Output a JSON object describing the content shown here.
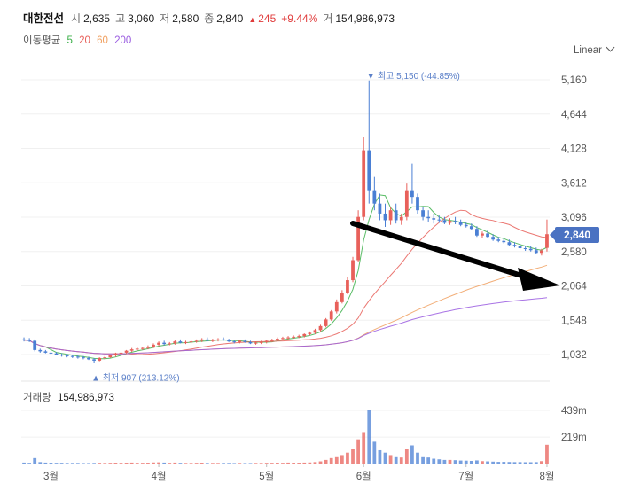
{
  "header": {
    "name": "대한전선",
    "open_label": "시",
    "open": "2,635",
    "high_label": "고",
    "high": "3,060",
    "low_label": "저",
    "low": "2,580",
    "close_label": "종",
    "close": "2,840",
    "change": "245",
    "change_pct": "+9.44%",
    "volume_label": "거",
    "volume": "154,986,973"
  },
  "ma_legend": {
    "title": "이동평균",
    "periods": [
      {
        "label": "5",
        "color": "#3cb04a"
      },
      {
        "label": "20",
        "color": "#e8605a"
      },
      {
        "label": "60",
        "color": "#f0a060"
      },
      {
        "label": "200",
        "color": "#9a5ce0"
      }
    ]
  },
  "scale_label": "Linear",
  "volume_panel": {
    "title": "거래량",
    "value": "154,986,973"
  },
  "colors": {
    "up": "#e8605a",
    "down": "#4a7fd4",
    "accent": "#4a72c2",
    "arrow": "#000000"
  },
  "chart_data": {
    "type": "candlestick",
    "price_ticks": [
      1032,
      1548,
      2064,
      2580,
      3096,
      3612,
      4128,
      4644,
      5160
    ],
    "price_tick_labels": [
      "1,032",
      "1,548",
      "2,064",
      "2,580",
      "3,096",
      "3,612",
      "4,128",
      "4,644",
      "5,160"
    ],
    "ylim": [
      900,
      5300
    ],
    "volume_ticks": [
      "219m",
      "439m"
    ],
    "volume_tick_values": [
      219,
      439
    ],
    "x_labels": [
      "3월",
      "4월",
      "5월",
      "6월",
      "7월",
      "8월"
    ],
    "current_price": "2,840",
    "current_price_value": 2840,
    "high_annotation": "최고 5,150 (-44.85%)",
    "high_annotation_value": 5150,
    "low_annotation": "최저 907 (213.12%)",
    "low_annotation_value": 907,
    "candles": [
      [
        1260,
        1290,
        1230,
        1250,
        8
      ],
      [
        1250,
        1280,
        1220,
        1240,
        6
      ],
      [
        1240,
        1260,
        1080,
        1100,
        45
      ],
      [
        1100,
        1120,
        1060,
        1080,
        12
      ],
      [
        1080,
        1100,
        1050,
        1060,
        8
      ],
      [
        1060,
        1080,
        1030,
        1050,
        7
      ],
      [
        1050,
        1070,
        1020,
        1030,
        6
      ],
      [
        1030,
        1050,
        1000,
        1020,
        6
      ],
      [
        1020,
        1040,
        990,
        1010,
        5
      ],
      [
        1010,
        1030,
        980,
        1000,
        5
      ],
      [
        1000,
        1020,
        970,
        990,
        5
      ],
      [
        990,
        1010,
        960,
        980,
        4
      ],
      [
        980,
        1000,
        950,
        960,
        4
      ],
      [
        960,
        980,
        907,
        940,
        5
      ],
      [
        940,
        990,
        930,
        980,
        6
      ],
      [
        980,
        1010,
        960,
        990,
        5
      ],
      [
        990,
        1030,
        980,
        1020,
        6
      ],
      [
        1020,
        1060,
        1000,
        1050,
        7
      ],
      [
        1050,
        1080,
        1030,
        1060,
        6
      ],
      [
        1060,
        1100,
        1040,
        1090,
        7
      ],
      [
        1090,
        1130,
        1070,
        1110,
        8
      ],
      [
        1110,
        1140,
        1090,
        1120,
        6
      ],
      [
        1120,
        1150,
        1100,
        1130,
        6
      ],
      [
        1130,
        1170,
        1110,
        1150,
        7
      ],
      [
        1150,
        1200,
        1130,
        1180,
        9
      ],
      [
        1180,
        1230,
        1160,
        1210,
        10
      ],
      [
        1210,
        1240,
        1170,
        1190,
        8
      ],
      [
        1190,
        1220,
        1170,
        1200,
        6
      ],
      [
        1200,
        1250,
        1180,
        1230,
        8
      ],
      [
        1230,
        1260,
        1200,
        1210,
        6
      ],
      [
        1210,
        1240,
        1190,
        1220,
        5
      ],
      [
        1220,
        1250,
        1200,
        1230,
        5
      ],
      [
        1230,
        1260,
        1210,
        1240,
        6
      ],
      [
        1240,
        1280,
        1220,
        1260,
        7
      ],
      [
        1260,
        1290,
        1230,
        1240,
        5
      ],
      [
        1240,
        1270,
        1220,
        1250,
        5
      ],
      [
        1250,
        1280,
        1230,
        1260,
        5
      ],
      [
        1260,
        1290,
        1240,
        1250,
        5
      ],
      [
        1250,
        1270,
        1220,
        1230,
        5
      ],
      [
        1230,
        1250,
        1200,
        1220,
        4
      ],
      [
        1220,
        1250,
        1200,
        1240,
        5
      ],
      [
        1240,
        1260,
        1210,
        1220,
        4
      ],
      [
        1220,
        1240,
        1190,
        1200,
        4
      ],
      [
        1200,
        1230,
        1180,
        1210,
        5
      ],
      [
        1210,
        1240,
        1190,
        1220,
        5
      ],
      [
        1220,
        1250,
        1200,
        1240,
        6
      ],
      [
        1240,
        1270,
        1220,
        1250,
        6
      ],
      [
        1250,
        1290,
        1230,
        1270,
        7
      ],
      [
        1270,
        1300,
        1250,
        1280,
        6
      ],
      [
        1280,
        1310,
        1260,
        1290,
        8
      ],
      [
        1290,
        1320,
        1270,
        1300,
        7
      ],
      [
        1300,
        1330,
        1280,
        1310,
        7
      ],
      [
        1310,
        1350,
        1290,
        1340,
        8
      ],
      [
        1340,
        1380,
        1320,
        1360,
        9
      ],
      [
        1360,
        1420,
        1340,
        1400,
        12
      ],
      [
        1400,
        1480,
        1380,
        1460,
        18
      ],
      [
        1460,
        1580,
        1440,
        1560,
        30
      ],
      [
        1560,
        1700,
        1540,
        1680,
        45
      ],
      [
        1680,
        1860,
        1650,
        1820,
        60
      ],
      [
        1820,
        2000,
        1800,
        1960,
        70
      ],
      [
        1960,
        2200,
        1940,
        2150,
        90
      ],
      [
        2150,
        2500,
        2120,
        2450,
        120
      ],
      [
        2450,
        3200,
        2420,
        3100,
        200
      ],
      [
        3100,
        4300,
        3050,
        4100,
        260
      ],
      [
        4100,
        5150,
        3300,
        3500,
        440
      ],
      [
        3500,
        3700,
        3200,
        3300,
        180
      ],
      [
        3300,
        3450,
        3050,
        3150,
        110
      ],
      [
        3150,
        3300,
        2950,
        3050,
        90
      ],
      [
        3050,
        3250,
        2980,
        3200,
        70
      ],
      [
        3200,
        3300,
        3000,
        3050,
        60
      ],
      [
        3050,
        3150,
        2980,
        3100,
        50
      ],
      [
        3100,
        3600,
        3050,
        3500,
        120
      ],
      [
        3500,
        3900,
        3300,
        3400,
        150
      ],
      [
        3400,
        3450,
        3150,
        3200,
        90
      ],
      [
        3200,
        3250,
        3050,
        3100,
        60
      ],
      [
        3100,
        3200,
        3030,
        3080,
        50
      ],
      [
        3080,
        3150,
        3000,
        3060,
        40
      ],
      [
        3060,
        3120,
        3010,
        3050,
        35
      ],
      [
        3050,
        3100,
        2990,
        3010,
        30
      ],
      [
        3010,
        3080,
        2980,
        3040,
        30
      ],
      [
        3040,
        3100,
        2990,
        3020,
        28
      ],
      [
        3020,
        3060,
        2960,
        2980,
        25
      ],
      [
        2980,
        3020,
        2940,
        2960,
        24
      ],
      [
        2960,
        3000,
        2900,
        2920,
        22
      ],
      [
        2920,
        2960,
        2800,
        2820,
        26
      ],
      [
        2820,
        2880,
        2780,
        2850,
        20
      ],
      [
        2850,
        2900,
        2780,
        2800,
        18
      ],
      [
        2800,
        2840,
        2740,
        2760,
        16
      ],
      [
        2760,
        2800,
        2720,
        2740,
        14
      ],
      [
        2740,
        2780,
        2700,
        2720,
        14
      ],
      [
        2720,
        2760,
        2660,
        2680,
        13
      ],
      [
        2680,
        2720,
        2640,
        2660,
        12
      ],
      [
        2660,
        2700,
        2610,
        2630,
        12
      ],
      [
        2630,
        2670,
        2590,
        2620,
        11
      ],
      [
        2620,
        2660,
        2580,
        2600,
        11
      ],
      [
        2600,
        2640,
        2540,
        2560,
        12
      ],
      [
        2560,
        2620,
        2520,
        2595,
        20
      ],
      [
        2635,
        3060,
        2580,
        2840,
        155
      ]
    ]
  }
}
